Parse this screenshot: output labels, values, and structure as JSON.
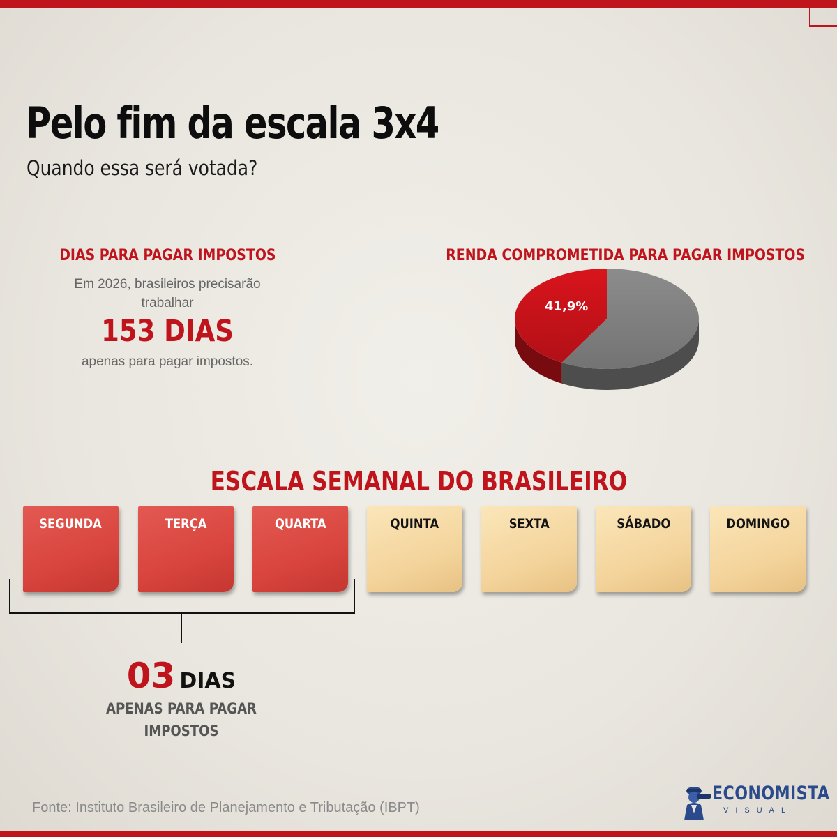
{
  "header": {
    "title": "Pelo fim da escala 3x4",
    "subtitle": "Quando essa será votada?"
  },
  "days_section": {
    "heading": "DIAS PARA PAGAR IMPOSTOS",
    "line1": "Em 2026, brasileiros precisarão trabalhar",
    "highlight": "153 DIAS",
    "line2": "apenas para pagar impostos."
  },
  "income_section": {
    "heading": "RENDA COMPROMETIDA PARA PAGAR IMPOSTOS"
  },
  "chart_data": {
    "type": "pie",
    "title": "RENDA COMPROMETIDA PARA PAGAR IMPOSTOS",
    "slices": [
      {
        "label": "41,9%",
        "value": 41.9,
        "color": "#d9141c"
      },
      {
        "label": "",
        "value": 58.1,
        "color": "#8c8c8c"
      }
    ]
  },
  "week": {
    "title": "ESCALA SEMANAL DO BRASILEIRO",
    "days": [
      {
        "label": "SEGUNDA",
        "type": "work"
      },
      {
        "label": "TERÇA",
        "type": "work"
      },
      {
        "label": "QUARTA",
        "type": "work"
      },
      {
        "label": "QUINTA",
        "type": "free"
      },
      {
        "label": "SEXTA",
        "type": "free"
      },
      {
        "label": "SÁBADO",
        "type": "free"
      },
      {
        "label": "DOMINGO",
        "type": "free"
      }
    ],
    "summary_number": "03",
    "summary_unit": "DIAS",
    "summary_text": "APENAS PARA PAGAR IMPOSTOS"
  },
  "footer": {
    "source": "Fonte: Instituto Brasileiro de Planejamento e Tributação (IBPT)",
    "logo_name": "ECONOMISTA",
    "logo_sub": "VISUAL"
  },
  "colors": {
    "accent_red": "#c0141c",
    "work_note": "#d9443e",
    "free_note": "#f3d39a",
    "logo_blue": "#2a4a8c"
  }
}
